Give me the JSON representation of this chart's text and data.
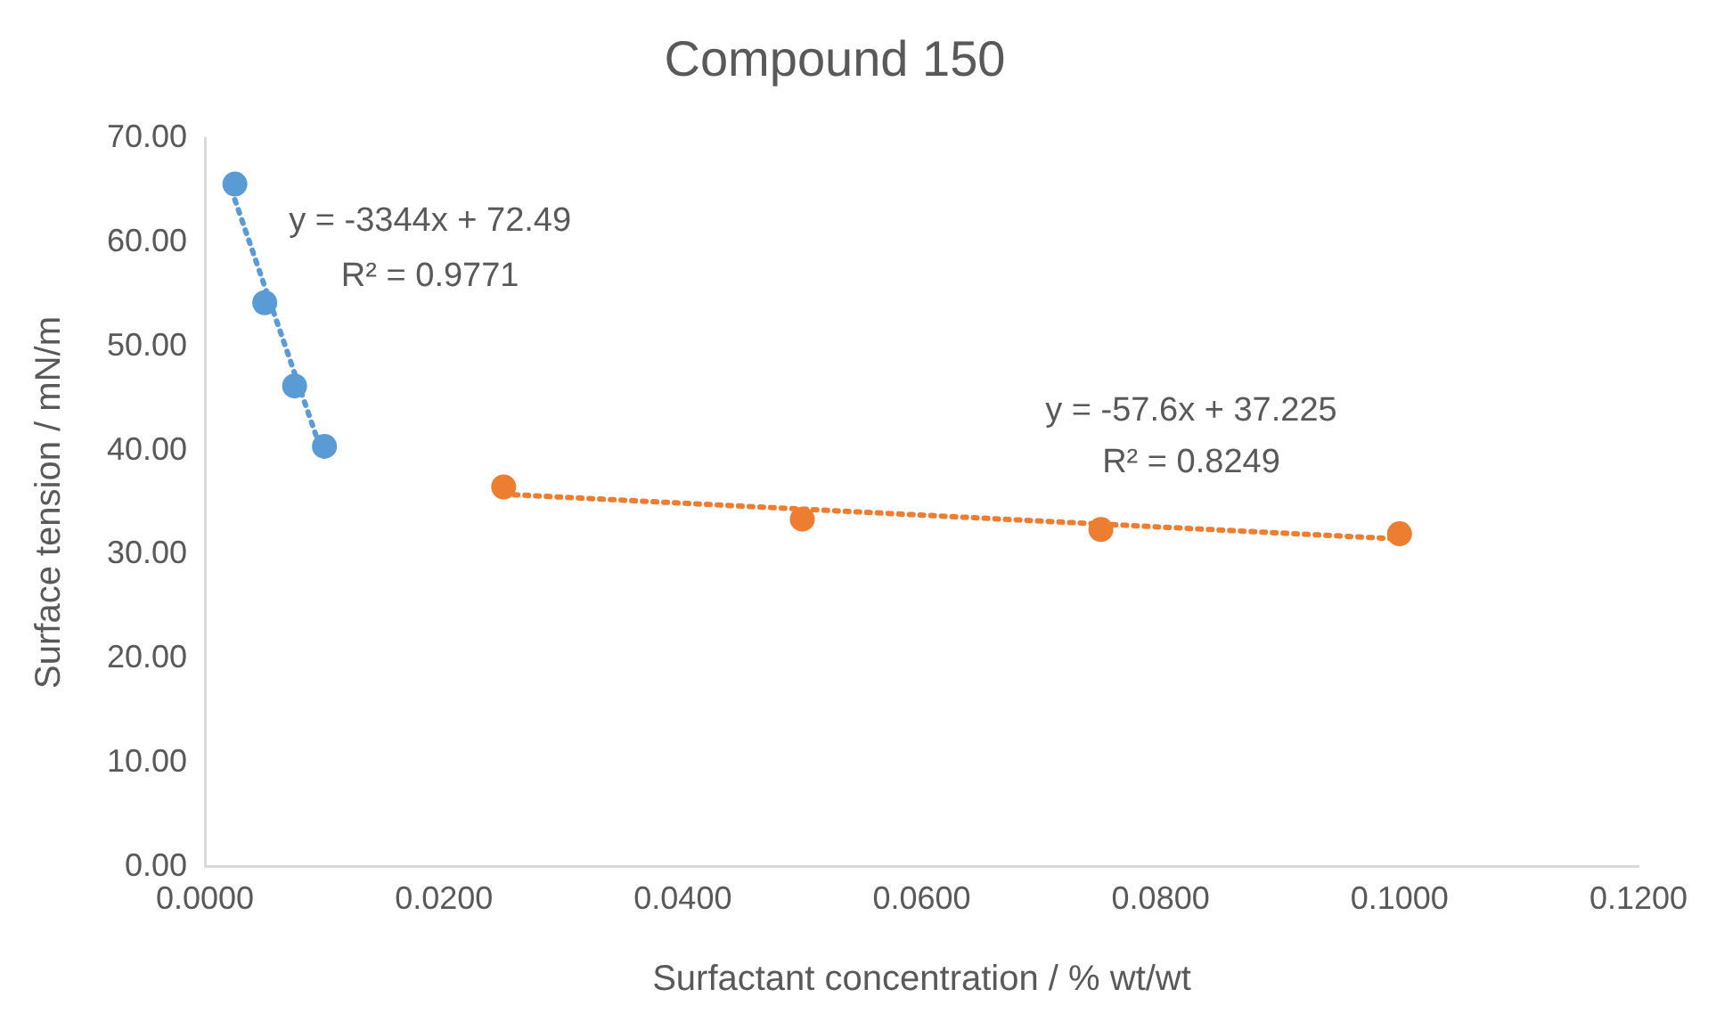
{
  "chart_data": {
    "type": "scatter",
    "title": "Compound 150",
    "xlabel": "Surfactant concentration / % wt/wt",
    "ylabel": "Surface tension / mN/m",
    "series": [
      {
        "type": "scatter",
        "color": "#5b9bd5",
        "x": [
          0.0025,
          0.005,
          0.0075,
          0.01
        ],
        "values": [
          65.6,
          54.2,
          46.2,
          40.4
        ]
      },
      {
        "type": "scatter",
        "color": "#ed7d31",
        "x": [
          0.025,
          0.05,
          0.075,
          0.1
        ],
        "values": [
          36.5,
          33.4,
          32.4,
          32.0
        ]
      },
      {
        "type": "line",
        "color": "#5b9bd5",
        "line_style": "dotted",
        "marker": "none",
        "x": [
          0.0025,
          0.01
        ],
        "values": [
          64.1,
          39.1
        ]
      },
      {
        "type": "line",
        "color": "#ed7d31",
        "line_style": "dotted",
        "marker": "none",
        "x": [
          0.025,
          0.1
        ],
        "values": [
          35.8,
          31.5
        ]
      }
    ],
    "marker": "circle",
    "annotations": [
      "y = -3344x + 72.49",
      "R² = 0.9771",
      "y = -57.6x + 37.225",
      "R² = 0.8249"
    ],
    "xlim": [
      0,
      0.12
    ],
    "xticks": [
      {
        "value": 0,
        "label": "0.0000"
      },
      {
        "value": 0.02,
        "label": "0.0200"
      },
      {
        "value": 0.04,
        "label": "0.0400"
      },
      {
        "value": 0.06,
        "label": "0.0600"
      },
      {
        "value": 0.08,
        "label": "0.0800"
      },
      {
        "value": 0.1,
        "label": "0.1000"
      },
      {
        "value": 0.12,
        "label": "0.1200"
      }
    ],
    "ylim": [
      0,
      70
    ],
    "yticks": [
      {
        "value": 0,
        "label": "0.00"
      },
      {
        "value": 10,
        "label": "10.00"
      },
      {
        "value": 20,
        "label": "20.00"
      },
      {
        "value": 30,
        "label": "30.00"
      },
      {
        "value": 40,
        "label": "40.00"
      },
      {
        "value": 50,
        "label": "50.00"
      },
      {
        "value": 60,
        "label": "60.00"
      },
      {
        "value": 70,
        "label": "70.00"
      }
    ],
    "grid": false,
    "legend": false
  }
}
